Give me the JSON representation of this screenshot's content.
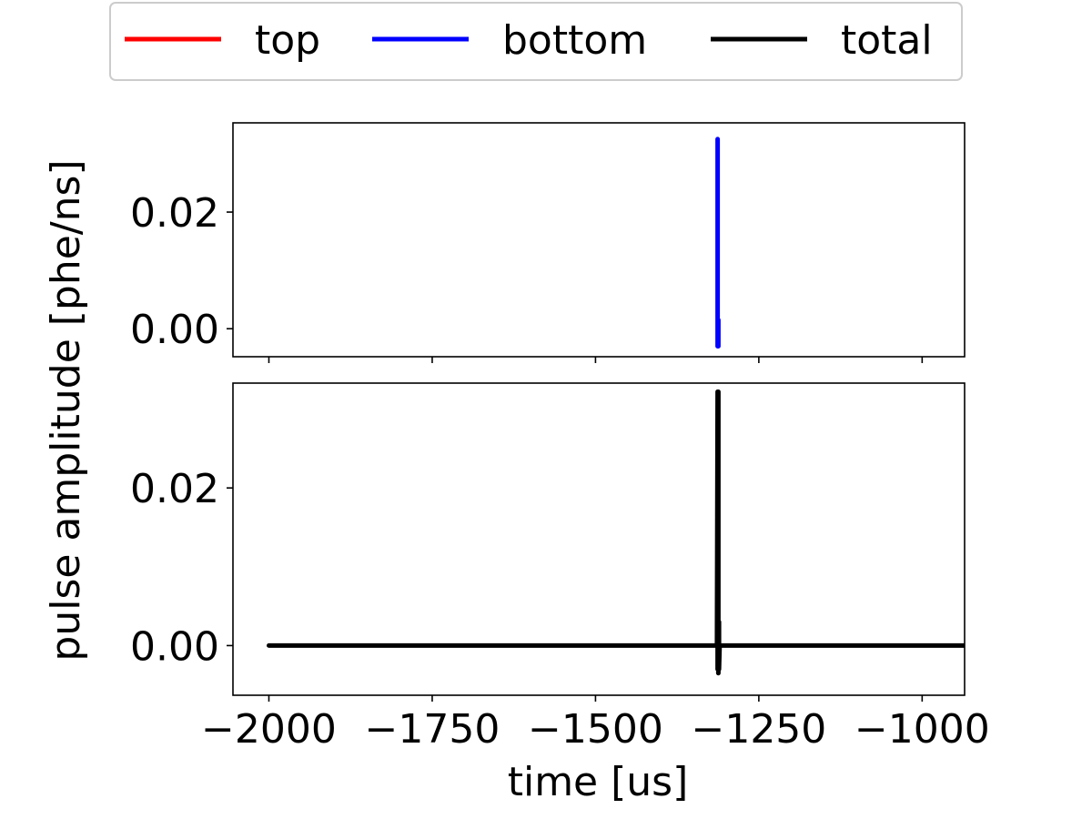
{
  "chart_data": {
    "type": "line",
    "title": "",
    "xlabel": "time [us]",
    "ylabel": "pulse amplitude [phe/ns]",
    "xlim": [
      -2055,
      -935
    ],
    "x_ticks": [
      -2000,
      -1750,
      -1500,
      -1250,
      -1000
    ],
    "x_tick_labels": [
      "−2000",
      "−1750",
      "−1500",
      "−1250",
      "−1000"
    ],
    "legend": {
      "placement": "top-center",
      "entries": [
        {
          "label": "top",
          "color": "#ff0000"
        },
        {
          "label": "bottom",
          "color": "#0000ff"
        },
        {
          "label": "total",
          "color": "#000000"
        }
      ]
    },
    "grid": false,
    "panels": [
      {
        "ylim": [
          -0.0048,
          0.0353
        ],
        "y_ticks": [
          0.0,
          0.02
        ],
        "y_tick_labels": [
          "0.00",
          "0.02"
        ],
        "series": [
          {
            "name": "bottom",
            "color": "#0000ff",
            "x": [
              -1313,
              -1313,
              -1312,
              -1312
            ],
            "y": [
              0.0325,
              -0.003,
              0.0015,
              -0.003
            ]
          }
        ]
      },
      {
        "ylim": [
          -0.0063,
          0.0333
        ],
        "y_ticks": [
          0.0,
          0.02
        ],
        "y_tick_labels": [
          "0.00",
          "0.02"
        ],
        "series": [
          {
            "name": "total",
            "color": "#000000",
            "x": [
              -2000,
              -1314,
              -1313,
              -1313,
              -1312,
              -1312,
              -1311,
              -1311,
              -1310,
              -931
            ],
            "y": [
              0.0,
              0.0,
              0.0322,
              -0.003,
              0.0322,
              -0.0035,
              0.003,
              -0.003,
              0.0,
              0.0
            ]
          }
        ]
      }
    ]
  }
}
